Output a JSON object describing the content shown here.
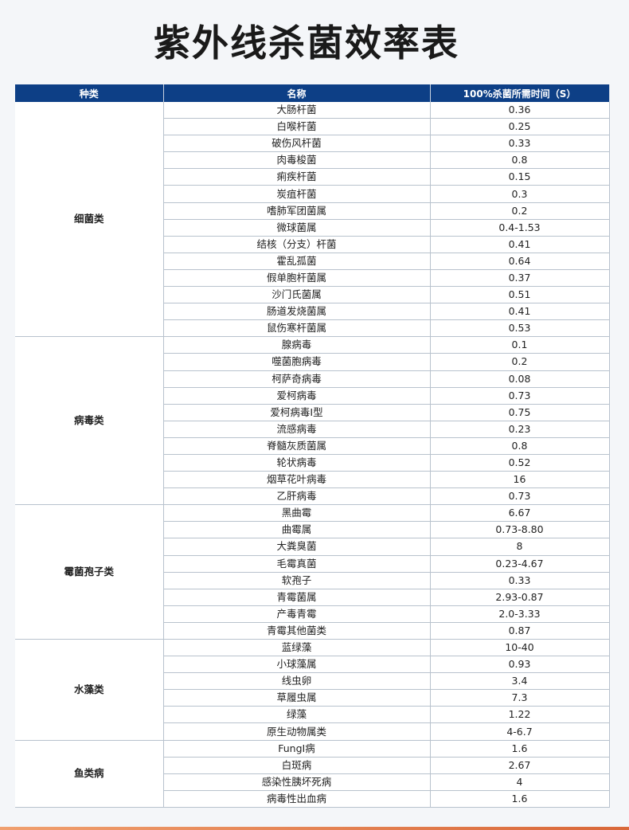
{
  "title": "紫外线杀菌效率表",
  "headers": [
    "种类",
    "名称",
    "100%杀菌所需时间（S）"
  ],
  "groups": [
    {
      "category": "细菌类",
      "rows": [
        [
          "大肠杆菌",
          "0.36"
        ],
        [
          "白喉杆菌",
          "0.25"
        ],
        [
          "破伤风杆菌",
          "0.33"
        ],
        [
          "肉毒梭菌",
          "0.8"
        ],
        [
          "痢疾杆菌",
          "0.15"
        ],
        [
          "炭疽杆菌",
          "0.3"
        ],
        [
          "嗜肺军团菌属",
          "0.2"
        ],
        [
          "微球菌属",
          "0.4-1.53"
        ],
        [
          "结核（分支）杆菌",
          "0.41"
        ],
        [
          "霍乱孤菌",
          "0.64"
        ],
        [
          "假单胞杆菌属",
          "0.37"
        ],
        [
          "沙门氏菌属",
          "0.51"
        ],
        [
          "肠道发烧菌属",
          "0.41"
        ],
        [
          "鼠伤寒杆菌属",
          "0.53"
        ]
      ]
    },
    {
      "category": "病毒类",
      "rows": [
        [
          "腺病毒",
          "0.1"
        ],
        [
          "噬菌胞病毒",
          "0.2"
        ],
        [
          "柯萨奇病毒",
          "0.08"
        ],
        [
          "爱柯病毒",
          "0.73"
        ],
        [
          "爱柯病毒I型",
          "0.75"
        ],
        [
          "流感病毒",
          "0.23"
        ],
        [
          "脊髓灰质菌属",
          "0.8"
        ],
        [
          "轮状病毒",
          "0.52"
        ],
        [
          "烟草花叶病毒",
          "16"
        ],
        [
          "乙肝病毒",
          "0.73"
        ]
      ]
    },
    {
      "category": "霉菌孢子类",
      "rows": [
        [
          "黑曲霉",
          "6.67"
        ],
        [
          "曲霉属",
          "0.73-8.80"
        ],
        [
          "大粪臭菌",
          "8"
        ],
        [
          "毛霉真菌",
          "0.23-4.67"
        ],
        [
          "软孢子",
          "0.33"
        ],
        [
          "青霉菌属",
          "2.93-0.87"
        ],
        [
          "产毒青霉",
          "2.0-3.33"
        ],
        [
          "青霉其他菌类",
          "0.87"
        ]
      ]
    },
    {
      "category": "水藻类",
      "rows": [
        [
          "蓝绿藻",
          "10-40"
        ],
        [
          "小球藻属",
          "0.93"
        ],
        [
          "线虫卵",
          "3.4"
        ],
        [
          "草履虫属",
          "7.3"
        ],
        [
          "绿藻",
          "1.22"
        ],
        [
          "原生动物属类",
          "4-6.7"
        ]
      ]
    },
    {
      "category": "鱼类病",
      "rows": [
        [
          "FungI病",
          "1.6"
        ],
        [
          "白斑病",
          "2.67"
        ],
        [
          "感染性胰坏死病",
          "4"
        ],
        [
          "病毒性出血病",
          "1.6"
        ]
      ]
    }
  ],
  "colors": {
    "header_bg": "#0d3f86",
    "accent_bar": "#d9683a"
  }
}
